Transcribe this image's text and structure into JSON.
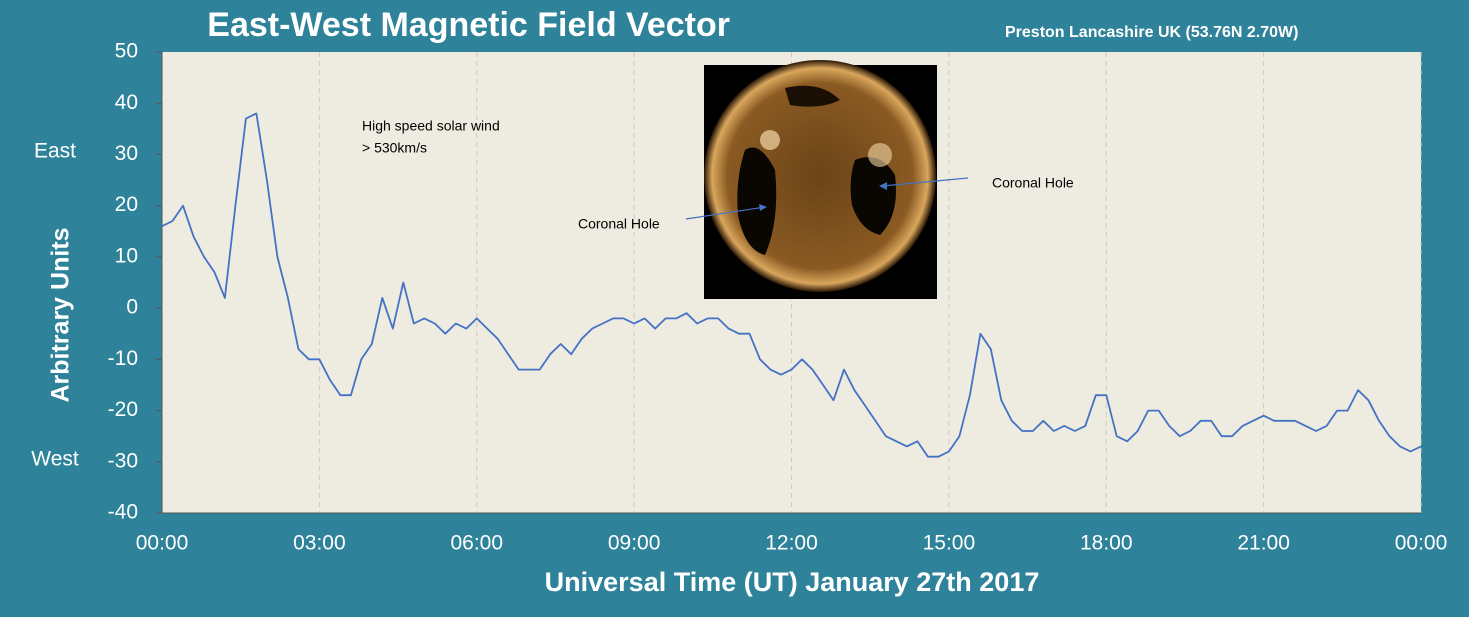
{
  "chart_data": {
    "type": "line",
    "title": "East-West Magnetic Field Vector",
    "subtitle": "Preston Lancashire UK (53.76N 2.70W)",
    "x_label": "Universal Time (UT) January 27th 2017",
    "y_label": "Arbitrary Units",
    "annotations": {
      "east": "East",
      "west": "West",
      "wind_1": "High speed solar wind",
      "wind_2": "> 530km/s",
      "hole_left": "Coronal Hole",
      "hole_right": "Coronal Hole"
    },
    "color": "#4472c4",
    "grid": true,
    "xlim": [
      0,
      24
    ],
    "xticks": [
      {
        "value": 0,
        "label": "00:00"
      },
      {
        "value": 3,
        "label": "03:00"
      },
      {
        "value": 6,
        "label": "06:00"
      },
      {
        "value": 9,
        "label": "09:00"
      },
      {
        "value": 12,
        "label": "12:00"
      },
      {
        "value": 15,
        "label": "15:00"
      },
      {
        "value": 18,
        "label": "18:00"
      },
      {
        "value": 21,
        "label": "21:00"
      },
      {
        "value": 24,
        "label": "00:00"
      }
    ],
    "ylim": [
      -40,
      50
    ],
    "yticks": [
      -40,
      -30,
      -20,
      -10,
      0,
      10,
      20,
      30,
      40,
      50
    ],
    "x": [
      0,
      0.2,
      0.4,
      0.6,
      0.8,
      1,
      1.2,
      1.4,
      1.6,
      1.8,
      2,
      2.2,
      2.4,
      2.6,
      2.8,
      3,
      3.2,
      3.4,
      3.6,
      3.8,
      4,
      4.2,
      4.4,
      4.6,
      4.8,
      5,
      5.2,
      5.4,
      5.6,
      5.8,
      6,
      6.2,
      6.4,
      6.6,
      6.8,
      7,
      7.2,
      7.4,
      7.6,
      7.8,
      8,
      8.2,
      8.4,
      8.6,
      8.8,
      9,
      9.2,
      9.4,
      9.6,
      9.8,
      10,
      10.2,
      10.4,
      10.6,
      10.8,
      11,
      11.2,
      11.4,
      11.6,
      11.8,
      12,
      12.2,
      12.4,
      12.6,
      12.8,
      13,
      13.2,
      13.4,
      13.6,
      13.8,
      14,
      14.2,
      14.4,
      14.6,
      14.8,
      15,
      15.2,
      15.4,
      15.6,
      15.8,
      16,
      16.2,
      16.4,
      16.6,
      16.8,
      17,
      17.2,
      17.4,
      17.6,
      17.8,
      18,
      18.2,
      18.4,
      18.6,
      18.8,
      19,
      19.2,
      19.4,
      19.6,
      19.8,
      20,
      20.2,
      20.4,
      20.6,
      20.8,
      21,
      21.2,
      21.4,
      21.6,
      21.8,
      22,
      22.2,
      22.4,
      22.6,
      22.8,
      23,
      23.2,
      23.4,
      23.6,
      23.8,
      24
    ],
    "values": [
      16,
      17,
      20,
      14,
      10,
      7,
      2,
      20,
      37,
      38,
      25,
      10,
      2,
      -8,
      -10,
      -10,
      -14,
      -17,
      -17,
      -10,
      -7,
      2,
      -4,
      5,
      -3,
      -2,
      -3,
      -5,
      -3,
      -4,
      -2,
      -4,
      -6,
      -9,
      -12,
      -12,
      -12,
      -9,
      -7,
      -9,
      -6,
      -4,
      -3,
      -2,
      -2,
      -3,
      -2,
      -4,
      -2,
      -2,
      -1,
      -3,
      -2,
      -2,
      -4,
      -5,
      -5,
      -10,
      -12,
      -13,
      -12,
      -10,
      -12,
      -15,
      -18,
      -12,
      -16,
      -19,
      -22,
      -25,
      -26,
      -27,
      -26,
      -29,
      -29,
      -28,
      -25,
      -17,
      -5,
      -8,
      -18,
      -22,
      -24,
      -24,
      -22,
      -24,
      -23,
      -24,
      -23,
      -17,
      -17,
      -25,
      -26,
      -24,
      -20,
      -20,
      -23,
      -25,
      -24,
      -22,
      -22,
      -25,
      -25,
      -23,
      -22,
      -21,
      -22,
      -22,
      -22,
      -23,
      -24,
      -23,
      -20,
      -20,
      -16,
      -18,
      -22,
      -25,
      -27,
      -28,
      -27
    ]
  }
}
